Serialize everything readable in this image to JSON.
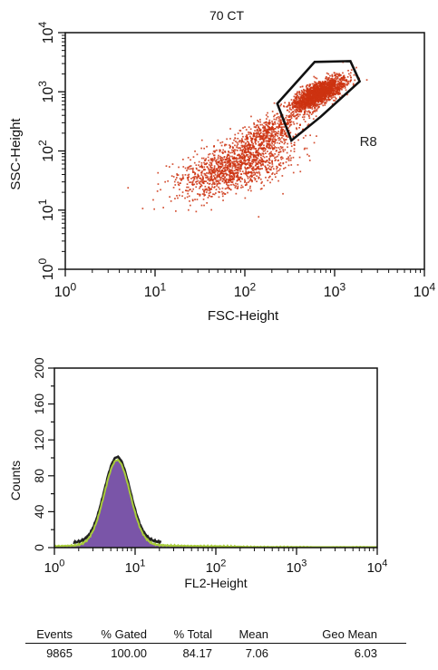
{
  "chart_data": [
    {
      "type": "scatter",
      "title": "70 CT",
      "xlabel": "FSC-Height",
      "ylabel": "SSC-Height",
      "x_scale": "log",
      "y_scale": "log",
      "xlim": [
        1,
        10000
      ],
      "ylim": [
        1,
        10000
      ],
      "x_ticks": [
        {
          "base": "10",
          "exp": "0"
        },
        {
          "base": "10",
          "exp": "1"
        },
        {
          "base": "10",
          "exp": "2"
        },
        {
          "base": "10",
          "exp": "3"
        },
        {
          "base": "10",
          "exp": "4"
        }
      ],
      "y_ticks": [
        {
          "base": "10",
          "exp": "0"
        },
        {
          "base": "10",
          "exp": "1"
        },
        {
          "base": "10",
          "exp": "2"
        },
        {
          "base": "10",
          "exp": "3"
        },
        {
          "base": "10",
          "exp": "4"
        }
      ],
      "point_color": "#cc3311",
      "gate": {
        "label": "R8",
        "color": "#111111",
        "polygon": [
          [
            230,
            630
          ],
          [
            600,
            3200
          ],
          [
            1500,
            3300
          ],
          [
            1900,
            1500
          ],
          [
            700,
            380
          ],
          [
            330,
            150
          ]
        ]
      },
      "clusters": [
        {
          "center": [
            75,
            55
          ],
          "spread": [
            0.33,
            0.25
          ],
          "tilt": 0.55,
          "count": 1300
        },
        {
          "center": [
            180,
            210
          ],
          "spread": [
            0.2,
            0.18
          ],
          "tilt": 0.7,
          "count": 500
        },
        {
          "center": [
            650,
            950
          ],
          "spread": [
            0.15,
            0.14
          ],
          "tilt": 0.75,
          "count": 1900
        }
      ]
    },
    {
      "type": "histogram",
      "xlabel": "FL2-Height",
      "ylabel": "Counts",
      "x_scale": "log",
      "xlim": [
        1,
        10000
      ],
      "ylim": [
        0,
        200
      ],
      "x_ticks": [
        {
          "base": "10",
          "exp": "0"
        },
        {
          "base": "10",
          "exp": "1"
        },
        {
          "base": "10",
          "exp": "2"
        },
        {
          "base": "10",
          "exp": "3"
        },
        {
          "base": "10",
          "exp": "4"
        }
      ],
      "y_ticks": [
        "0",
        "40",
        "80",
        "120",
        "160",
        "200"
      ],
      "fill_color": "#7a55a8",
      "outline_color": "#a8cc3a",
      "peak": {
        "x": 6.0,
        "count": 95,
        "log_sigma": 0.16
      },
      "baseline_count": 2.5
    }
  ],
  "stats_table": {
    "headers": [
      "Events",
      "% Gated",
      "% Total",
      "Mean",
      "Geo Mean"
    ],
    "values": [
      "9865",
      "100.00",
      "84.17",
      "7.06",
      "6.03"
    ]
  }
}
